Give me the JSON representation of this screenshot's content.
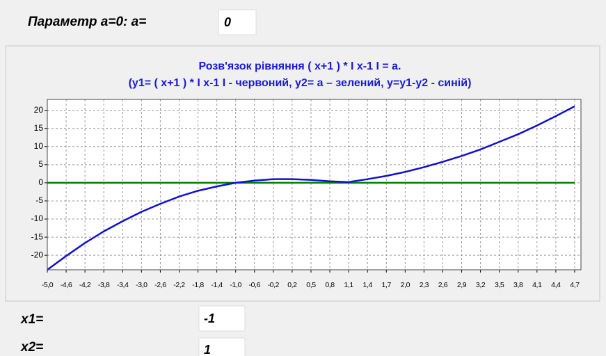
{
  "header": {
    "label": "Параметр a=0:  a=",
    "input": "0"
  },
  "chart_data": {
    "type": "line",
    "title": "Розв'язок рівняння ( x+1 ) * I x-1 I = a.",
    "subtitle": "(y1= ( x+1 ) * I x-1 I - червоний, y2= a – зелений,  y=y1-y2 - синій)",
    "categories": [
      "-5,0",
      "-4,6",
      "-4,2",
      "-3,8",
      "-3,4",
      "-3,0",
      "-2,6",
      "-2,2",
      "-1,8",
      "-1,4",
      "-1,0",
      "-0,6",
      "-0,2",
      "0,2",
      "0,5",
      "0,8",
      "1,1",
      "1,4",
      "1,7",
      "2,0",
      "2,3",
      "2,6",
      "2,9",
      "3,2",
      "3,5",
      "3,8",
      "4,1",
      "4,4",
      "4,7"
    ],
    "series": [
      {
        "color": "#1010d0",
        "values": [
          -24,
          -20.2,
          -16.6,
          -13.4,
          -10.6,
          -8,
          -5.8,
          -3.8,
          -2.2,
          -1,
          0,
          0.6,
          1,
          1,
          0.8,
          0.4,
          0.2,
          1,
          1.9,
          3,
          4.3,
          5.8,
          7.4,
          9.2,
          11.3,
          13.4,
          15.8,
          18.4,
          21.1
        ]
      },
      {
        "color": "#008000",
        "values": [
          0,
          0,
          0,
          0,
          0,
          0,
          0,
          0,
          0,
          0,
          0,
          0,
          0,
          0,
          0,
          0,
          0,
          0,
          0,
          0,
          0,
          0,
          0,
          0,
          0,
          0,
          0,
          0,
          0
        ]
      }
    ],
    "ylim": [
      -24,
      23
    ],
    "yticks": [
      -20,
      -15,
      -10,
      -5,
      0,
      5,
      10,
      15,
      20
    ],
    "grid": true
  },
  "results": [
    {
      "label": "x1=",
      "value": "-1"
    },
    {
      "label": "x2=",
      "value": "1"
    }
  ]
}
